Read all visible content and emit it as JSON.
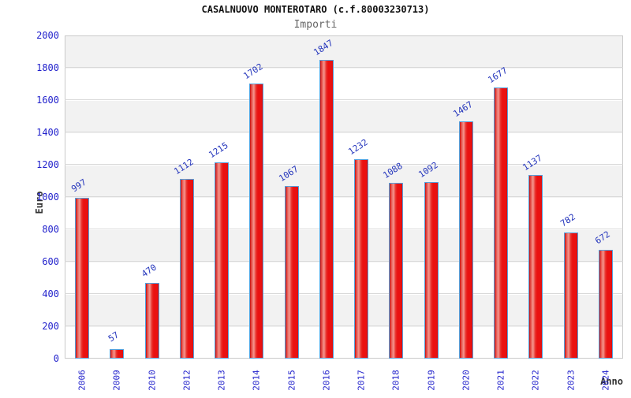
{
  "chart_data": {
    "type": "bar",
    "title": "CASALNUOVO MONTEROTARO (c.f.80003230713)",
    "subtitle": "Importi",
    "categories": [
      "2006",
      "2009",
      "2010",
      "2012",
      "2013",
      "2014",
      "2015",
      "2016",
      "2017",
      "2018",
      "2019",
      "2020",
      "2021",
      "2022",
      "2023",
      "2024"
    ],
    "values": [
      997,
      57,
      470,
      1112,
      1215,
      1702,
      1067,
      1847,
      1232,
      1088,
      1092,
      1467,
      1677,
      1137,
      782,
      672
    ],
    "xlabel": "Anno",
    "ylabel": "Euro",
    "ylim": [
      0,
      2000
    ],
    "ytick_step": 200,
    "grid": true,
    "band_fill": true,
    "legend": "none"
  },
  "colors": {
    "tick_text": "#2222cc",
    "value_text": "#2233bb",
    "bar_fill": "#ea1111",
    "bar_highlight": "#f5968e",
    "bar_border": "#54a1dd",
    "band": "#f2f2f2",
    "grid": "#d9d9d9",
    "plot_border": "#c9c9c9",
    "title_text": "#111111",
    "subtitle_text": "#666666",
    "axis_title_text": "#333333"
  }
}
